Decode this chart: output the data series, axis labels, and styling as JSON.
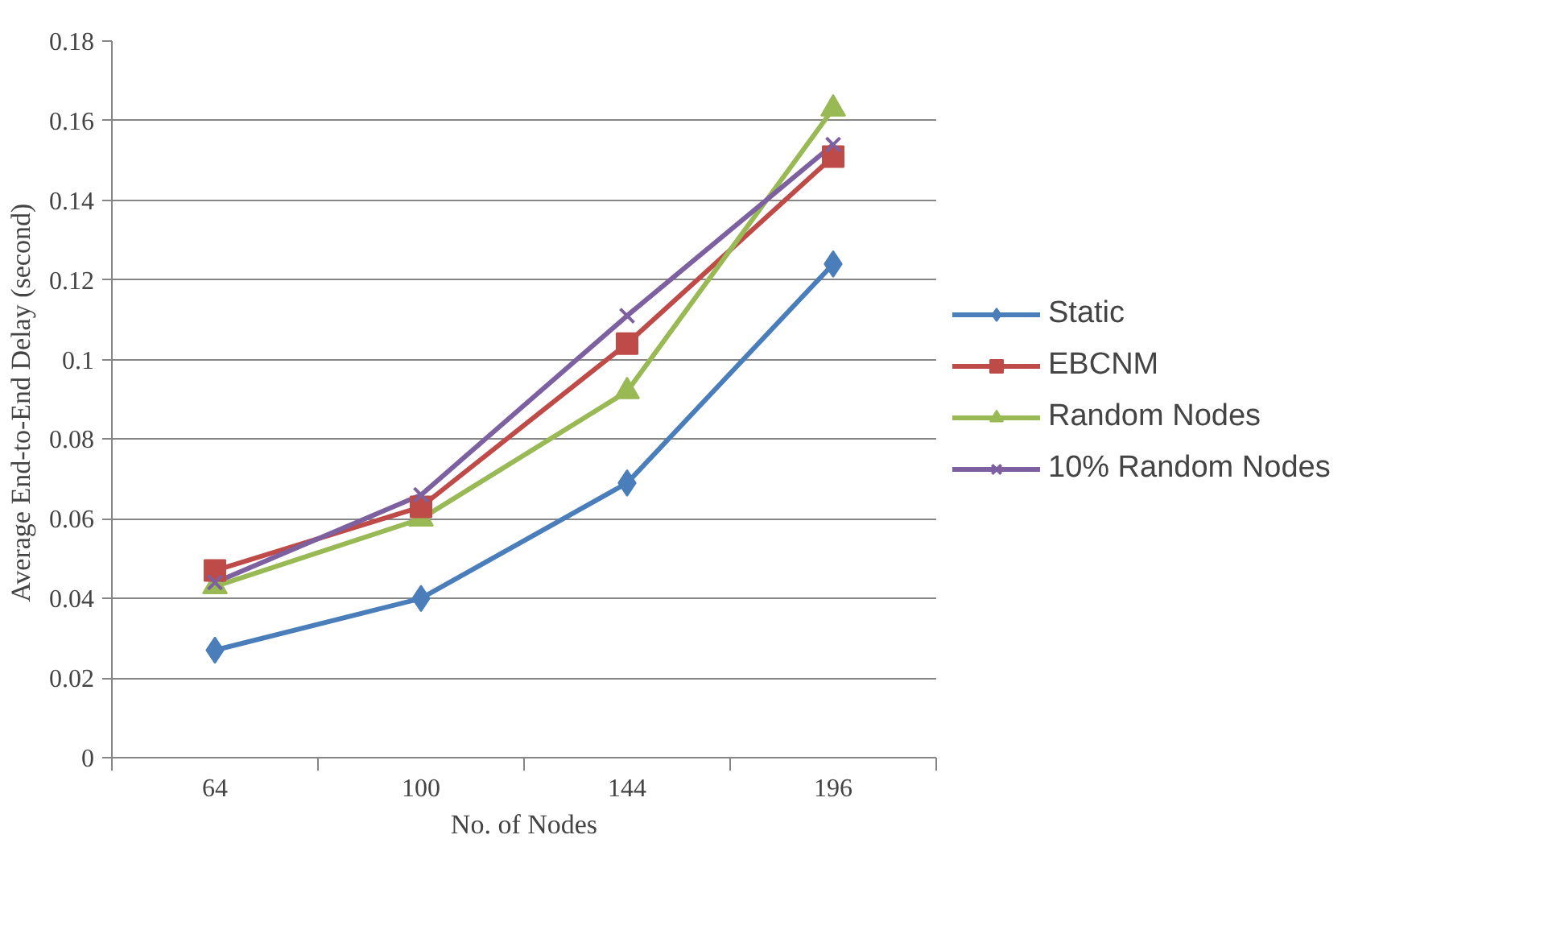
{
  "chart_data": {
    "type": "line",
    "xlabel": "No. of Nodes",
    "ylabel": "Average  End-to-End Delay (second)",
    "categories": [
      "64",
      "100",
      "144",
      "196"
    ],
    "ylim": [
      0,
      0.18
    ],
    "yticks": [
      0,
      0.02,
      0.04,
      0.06,
      0.08,
      0.1,
      0.12,
      0.14,
      0.16,
      0.18
    ],
    "grid": "y",
    "legend": "right",
    "line_style": "solid",
    "series": [
      {
        "name": "Static",
        "color": "#4a7ebb",
        "marker": "diamond",
        "values": [
          0.027,
          0.04,
          0.069,
          0.124
        ]
      },
      {
        "name": "EBCNM",
        "color": "#be4b48",
        "marker": "square",
        "values": [
          0.047,
          0.063,
          0.104,
          0.151
        ]
      },
      {
        "name": "Random Nodes",
        "color": "#98b954",
        "marker": "triangle",
        "values": [
          0.043,
          0.06,
          0.092,
          0.163
        ]
      },
      {
        "name": "10% Random Nodes",
        "color": "#7d60a0",
        "marker": "x",
        "values": [
          0.044,
          0.066,
          0.111,
          0.154
        ]
      }
    ]
  }
}
